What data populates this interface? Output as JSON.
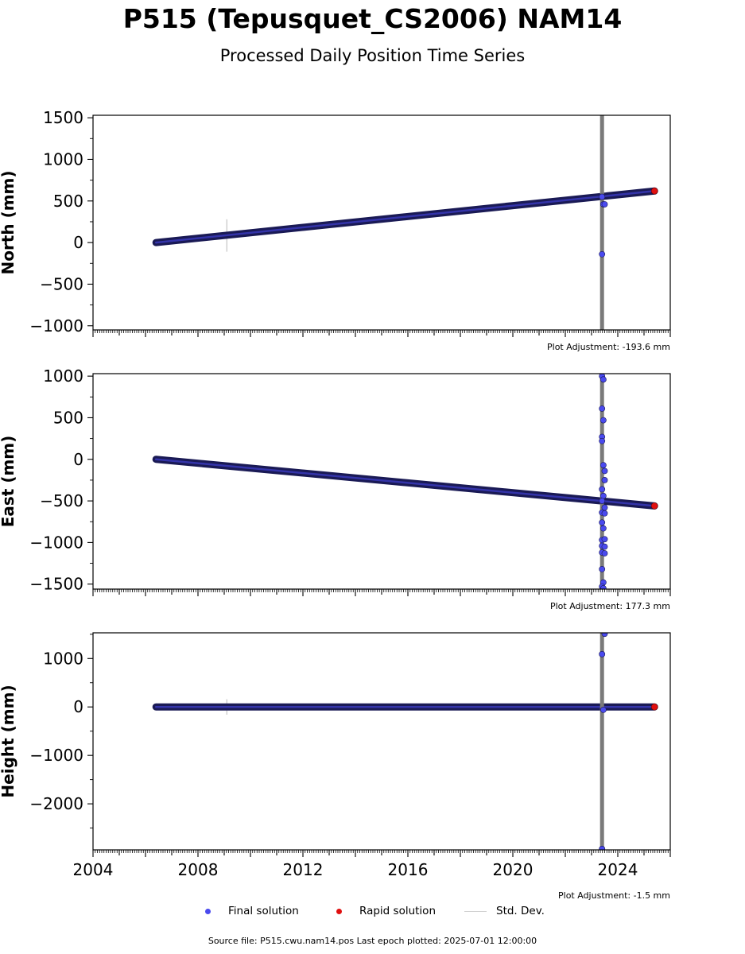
{
  "title": "P515 (Tepusquet_CS2006) NAM14",
  "subtitle": "Processed Daily Position Time Series",
  "legend": {
    "final": "Final solution",
    "rapid": "Rapid solution",
    "std": "Std. Dev."
  },
  "colors": {
    "final": "#4a4aee",
    "rapid": "#e01010",
    "stddev": "#d0d0d0",
    "gap_bar": "#7a7a7a"
  },
  "source": "Source file: P515.cwu.nam14.pos  Last epoch plotted: 2025-07-01 12:00:00",
  "chart_data": [
    {
      "type": "scatter",
      "ylabel": "North (mm)",
      "adjustment": "Plot Adjustment: -193.6 mm",
      "xlim": [
        2004,
        2026
      ],
      "ylim": [
        -1050,
        1530
      ],
      "xticks": [
        2004,
        2008,
        2012,
        2016,
        2020,
        2024
      ],
      "xtick_labels": [
        "2004",
        "2008",
        "2012",
        "2016",
        "2020",
        "2024"
      ],
      "show_xtick_labels": false,
      "yticks": [
        -1000,
        -500,
        0,
        500,
        1000,
        1500
      ],
      "ytick_labels": [
        "−1000",
        "−500",
        "0",
        "500",
        "1000",
        "1500"
      ],
      "series": [
        {
          "trend": {
            "x": [
              2006.4,
              2025.4
            ],
            "y": [
              0,
              620
            ]
          }
        },
        {
          "x": [
            2023.4,
            2023.45,
            2023.5,
            2023.4
          ],
          "y": [
            -140,
            460,
            460,
            550
          ]
        },
        {
          "x": [
            2025.4
          ],
          "y": [
            620
          ]
        }
      ],
      "stddev_marks": [
        {
          "x": 2009.1,
          "low": -110,
          "high": 280
        }
      ],
      "gap_bar_x": 2023.4
    },
    {
      "type": "scatter",
      "ylabel": "East (mm)",
      "adjustment": "Plot Adjustment: 177.3 mm",
      "xlim": [
        2004,
        2026
      ],
      "ylim": [
        -1560,
        1030
      ],
      "xticks": [
        2004,
        2008,
        2012,
        2016,
        2020,
        2024
      ],
      "xtick_labels": [
        "2004",
        "2008",
        "2012",
        "2016",
        "2020",
        "2024"
      ],
      "show_xtick_labels": false,
      "yticks": [
        -1500,
        -1000,
        -500,
        0,
        500,
        1000
      ],
      "ytick_labels": [
        "−1500",
        "−1000",
        "−500",
        "0",
        "500",
        "1000"
      ],
      "series": [
        {
          "trend": {
            "x": [
              2006.4,
              2025.4
            ],
            "y": [
              0,
              -560
            ]
          }
        },
        {
          "x": [
            2023.4,
            2023.45,
            2023.4,
            2023.45,
            2023.4,
            2023.4,
            2023.45,
            2023.5,
            2023.5,
            2023.4,
            2023.45,
            2023.4,
            2023.5,
            2023.4,
            2023.5,
            2023.4,
            2023.45,
            2023.4,
            2023.5,
            2023.4,
            2023.5,
            2023.4,
            2023.5,
            2023.4,
            2023.45,
            2023.4,
            2023.45,
            2023.4
          ],
          "y": [
            1000,
            960,
            610,
            470,
            270,
            220,
            -70,
            -140,
            -250,
            -360,
            -440,
            -500,
            -580,
            -640,
            -650,
            -760,
            -830,
            -970,
            -960,
            -1040,
            -1050,
            -1120,
            -1130,
            -1320,
            -1480,
            -1530,
            -1550,
            -1600
          ]
        },
        {
          "x": [
            2025.4
          ],
          "y": [
            -560
          ]
        }
      ],
      "stddev_marks": [],
      "gap_bar_x": 2023.4
    },
    {
      "type": "scatter",
      "ylabel": "Height (mm)",
      "adjustment": "Plot Adjustment: -1.5 mm",
      "xlim": [
        2004,
        2026
      ],
      "ylim": [
        -2950,
        1530
      ],
      "xticks": [
        2004,
        2008,
        2012,
        2016,
        2020,
        2024
      ],
      "xtick_labels": [
        "2004",
        "2008",
        "2012",
        "2016",
        "2020",
        "2024"
      ],
      "show_xtick_labels": true,
      "yticks": [
        -2000,
        -1000,
        0,
        1000
      ],
      "ytick_labels": [
        "−2000",
        "−1000",
        "0",
        "1000"
      ],
      "series": [
        {
          "trend": {
            "x": [
              2006.4,
              2025.4
            ],
            "y": [
              0,
              0
            ]
          }
        },
        {
          "x": [
            2023.5,
            2023.4,
            2023.45,
            2023.4
          ],
          "y": [
            1510,
            1090,
            -60,
            -2930
          ]
        },
        {
          "x": [
            2025.4
          ],
          "y": [
            0
          ]
        }
      ],
      "stddev_marks": [
        {
          "x": 2009.1,
          "low": -160,
          "high": 160
        }
      ],
      "gap_bar_x": 2023.4
    }
  ]
}
